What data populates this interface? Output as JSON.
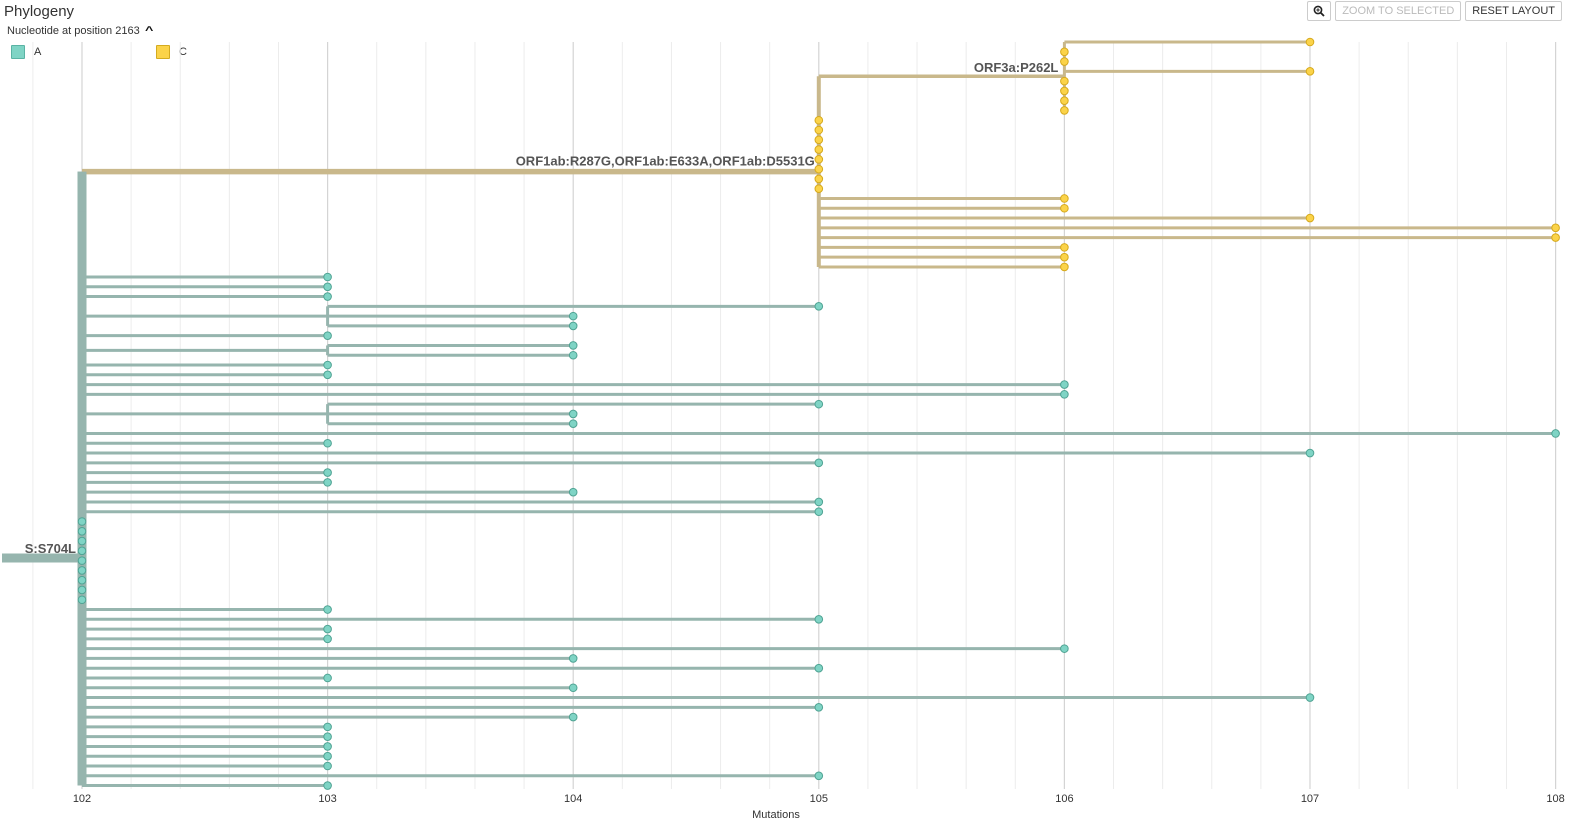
{
  "panel": {
    "title": "Phylogeny",
    "color_by": "Nucleotide at position 2163",
    "collapse_icon": "chevron-up-icon"
  },
  "legend": [
    {
      "label": "A",
      "color": "#7fd4c5",
      "border": "#5ab3a4"
    },
    {
      "label": "C",
      "color": "#fbd349",
      "border": "#d4ab20"
    }
  ],
  "toolbar": {
    "zoom_icon": "magnifier-icon",
    "zoom_selected_label": "ZOOM TO SELECTED",
    "reset_layout_label": "RESET LAYOUT"
  },
  "axis": {
    "label": "Mutations",
    "ticks": [
      102,
      103,
      104,
      105,
      106,
      107,
      108
    ]
  },
  "colors": {
    "branch_a": "#96b5ae",
    "branch_c": "#c9b88b",
    "tip_a": "#7fd4c5",
    "tip_a_stroke": "#4fa393",
    "tip_c": "#fbd349",
    "tip_c_stroke": "#d6a91c",
    "grid_major": "#d4d4d4",
    "grid_minor": "#ececec"
  },
  "tree": {
    "root_mutation": "S:S704L",
    "clade_a": {
      "node_x": 102,
      "tips": [
        {
          "parent": 102,
          "tips": [
            103,
            103,
            103
          ]
        },
        {
          "parent": 103,
          "tips": [
            105,
            104,
            104
          ]
        },
        {
          "parent": 102,
          "tips": [
            103
          ]
        },
        {
          "parent": 103,
          "tips": [
            104,
            104
          ]
        },
        {
          "parent": 102,
          "tips": [
            103,
            103
          ]
        },
        {
          "parent": 102,
          "tips": [
            106,
            106
          ]
        },
        {
          "parent": 103,
          "tips": [
            105,
            104,
            104
          ]
        },
        {
          "parent": 102,
          "tips": [
            108
          ]
        },
        {
          "parent": 102,
          "tips": [
            103
          ]
        },
        {
          "parent": 102,
          "tips": [
            107
          ]
        },
        {
          "parent": 102,
          "tips": [
            105
          ]
        },
        {
          "parent": 102,
          "tips": [
            103,
            103
          ]
        },
        {
          "parent": 102,
          "tips": [
            104
          ]
        },
        {
          "parent": 102,
          "tips": [
            105,
            105
          ]
        },
        {
          "parent": 102,
          "tips": [
            102,
            102,
            102,
            102,
            102,
            102,
            102,
            102,
            102
          ]
        },
        {
          "parent": 102,
          "tips": [
            103
          ]
        },
        {
          "parent": 102,
          "tips": [
            105
          ]
        },
        {
          "parent": 102,
          "tips": [
            103,
            103
          ]
        },
        {
          "parent": 102,
          "tips": [
            106
          ]
        },
        {
          "parent": 102,
          "tips": [
            104
          ]
        },
        {
          "parent": 102,
          "tips": [
            105
          ]
        },
        {
          "parent": 102,
          "tips": [
            103
          ]
        },
        {
          "parent": 102,
          "tips": [
            104
          ]
        },
        {
          "parent": 102,
          "tips": [
            107
          ]
        },
        {
          "parent": 102,
          "tips": [
            105
          ]
        },
        {
          "parent": 102,
          "tips": [
            104
          ]
        },
        {
          "parent": 102,
          "tips": [
            103,
            103,
            103,
            103,
            103
          ]
        },
        {
          "parent": 102,
          "tips": [
            105
          ]
        },
        {
          "parent": 102,
          "tips": [
            103
          ]
        }
      ]
    },
    "clade_c": {
      "mutation": "ORF1ab:R287G,ORF1ab:E633A,ORF1ab:D5531G",
      "node_x": 105,
      "subclade": {
        "mutation": "ORF3a:P262L",
        "node_x": 106
      }
    }
  }
}
